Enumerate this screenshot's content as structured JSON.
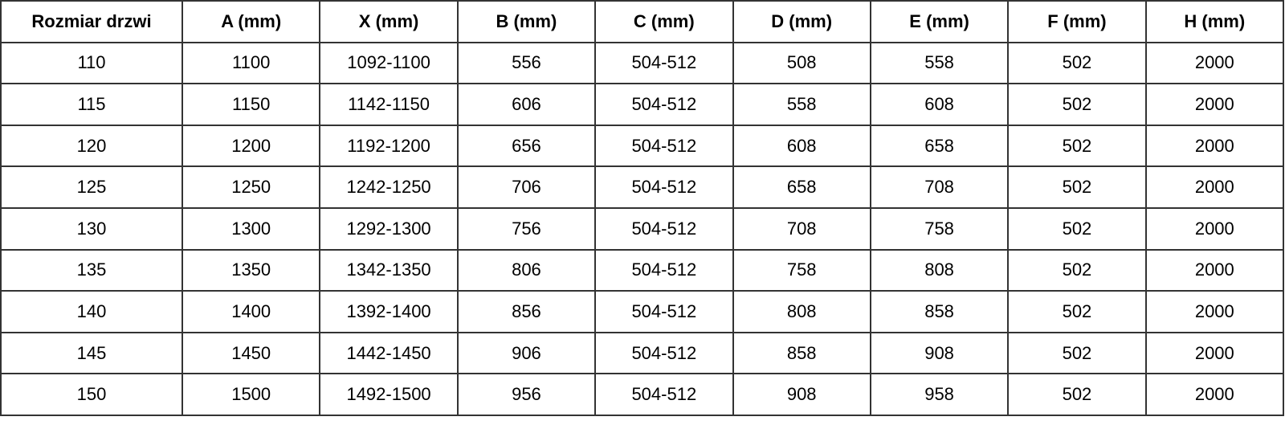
{
  "headers": [
    "Rozmiar drzwi",
    "A (mm)",
    "X (mm)",
    "B (mm)",
    "C (mm)",
    "D (mm)",
    "E (mm)",
    "F (mm)",
    "H (mm)"
  ],
  "rows": [
    [
      "110",
      "1100",
      "1092-1100",
      "556",
      "504-512",
      "508",
      "558",
      "502",
      "2000"
    ],
    [
      "115",
      "1150",
      "1142-1150",
      "606",
      "504-512",
      "558",
      "608",
      "502",
      "2000"
    ],
    [
      "120",
      "1200",
      "1192-1200",
      "656",
      "504-512",
      "608",
      "658",
      "502",
      "2000"
    ],
    [
      "125",
      "1250",
      "1242-1250",
      "706",
      "504-512",
      "658",
      "708",
      "502",
      "2000"
    ],
    [
      "130",
      "1300",
      "1292-1300",
      "756",
      "504-512",
      "708",
      "758",
      "502",
      "2000"
    ],
    [
      "135",
      "1350",
      "1342-1350",
      "806",
      "504-512",
      "758",
      "808",
      "502",
      "2000"
    ],
    [
      "140",
      "1400",
      "1392-1400",
      "856",
      "504-512",
      "808",
      "858",
      "502",
      "2000"
    ],
    [
      "145",
      "1450",
      "1442-1450",
      "906",
      "504-512",
      "858",
      "908",
      "502",
      "2000"
    ],
    [
      "150",
      "1500",
      "1492-1500",
      "956",
      "504-512",
      "908",
      "958",
      "502",
      "2000"
    ]
  ]
}
